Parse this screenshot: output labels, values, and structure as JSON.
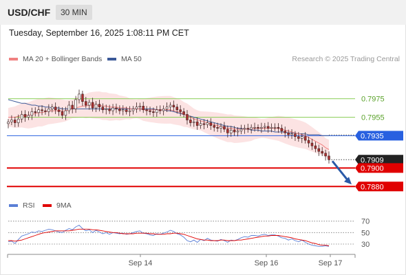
{
  "header": {
    "symbol": "USD/CHF",
    "timeframe": "30 MIN"
  },
  "datetime": "Tuesday, September 16, 2025 1:08:11 PM CET",
  "legend": {
    "ma20": "MA 20 + Bollinger Bands",
    "ma50": "MA 50",
    "research": "Research © 2025 Trading Central"
  },
  "rsi_legend": {
    "rsi": "RSI",
    "ma9": "9MA"
  },
  "colors": {
    "ma20": "#f08080",
    "ma50": "#3b5998",
    "rsi": "#5b7fd6",
    "ma9": "#e00000",
    "green": "#8ccf5a",
    "blue": "#2860e0",
    "red": "#e00000",
    "candle_up": "#ffffff",
    "candle_down": "#b03030"
  },
  "chart_data": [
    {
      "type": "candlestick",
      "title": "USD/CHF 30 MIN",
      "x_ticks": [
        "Sep 14",
        "Sep 16",
        "Sep 17"
      ],
      "ylim": [
        0.7872,
        0.8
      ],
      "overlays": [
        "MA 20 + Bollinger Bands",
        "MA 50"
      ],
      "levels": [
        {
          "value": 0.7975,
          "label": "0.7975",
          "color": "green"
        },
        {
          "value": 0.7955,
          "label": "0.7955",
          "color": "green"
        },
        {
          "value": 0.7935,
          "label": "0.7935",
          "color": "blue"
        },
        {
          "value": 0.7909,
          "label": "0.7909",
          "color": "black"
        },
        {
          "value": 0.79,
          "label": "0.7900",
          "color": "red"
        },
        {
          "value": 0.788,
          "label": "0.7880",
          "color": "red"
        }
      ],
      "close": [
        0.795,
        0.7952,
        0.7949,
        0.7953,
        0.7958,
        0.7955,
        0.7957,
        0.7961,
        0.796,
        0.7963,
        0.7962,
        0.7961,
        0.7964,
        0.7966,
        0.7963,
        0.7961,
        0.7957,
        0.7962,
        0.7968,
        0.7964,
        0.7974,
        0.798,
        0.7972,
        0.7968,
        0.7971,
        0.7965,
        0.7969,
        0.7966,
        0.7963,
        0.7964,
        0.7962,
        0.7965,
        0.7964,
        0.7962,
        0.7963,
        0.7961,
        0.7962,
        0.7964,
        0.7966,
        0.7967,
        0.7963,
        0.7962,
        0.7961,
        0.796,
        0.7963,
        0.7962,
        0.7964,
        0.7966,
        0.7968,
        0.7966,
        0.7963,
        0.7961,
        0.7958,
        0.7952,
        0.7949,
        0.795,
        0.7946,
        0.7948,
        0.7947,
        0.7949,
        0.7946,
        0.7944,
        0.7943,
        0.7945,
        0.7942,
        0.7938,
        0.7941,
        0.7939,
        0.794,
        0.7942,
        0.7943,
        0.7942,
        0.7944,
        0.7944,
        0.7943,
        0.7944,
        0.7945,
        0.7943,
        0.7944,
        0.7944,
        0.7943,
        0.794,
        0.7938,
        0.7936,
        0.7937,
        0.7934,
        0.7932,
        0.7934,
        0.793,
        0.7927,
        0.7924,
        0.7921,
        0.7918,
        0.7916,
        0.7913,
        0.7909
      ],
      "ma20": [
        0.7955,
        0.7955,
        0.7955,
        0.7956,
        0.7957,
        0.7957,
        0.7957,
        0.7958,
        0.7959,
        0.796,
        0.796,
        0.7961,
        0.7962,
        0.7962,
        0.7962,
        0.7962,
        0.7962,
        0.7962,
        0.7963,
        0.7964,
        0.7965,
        0.7966,
        0.7967,
        0.7967,
        0.7968,
        0.7968,
        0.7968,
        0.7968,
        0.7967,
        0.7967,
        0.7966,
        0.7966,
        0.7966,
        0.7965,
        0.7965,
        0.7965,
        0.7964,
        0.7964,
        0.7964,
        0.7964,
        0.7963,
        0.7963,
        0.7963,
        0.7963,
        0.7963,
        0.7963,
        0.7963,
        0.7963,
        0.7963,
        0.7962,
        0.7961,
        0.796,
        0.7958,
        0.7957,
        0.7955,
        0.7953,
        0.7952,
        0.7951,
        0.795,
        0.7949,
        0.7948,
        0.7947,
        0.7946,
        0.7945,
        0.7944,
        0.7943,
        0.7943,
        0.7942,
        0.7942,
        0.7942,
        0.7942,
        0.7942,
        0.7942,
        0.7943,
        0.7943,
        0.7943,
        0.7943,
        0.7943,
        0.7943,
        0.7943,
        0.7943,
        0.7942,
        0.7941,
        0.794,
        0.7939,
        0.7938,
        0.7937,
        0.7936,
        0.7935,
        0.7933,
        0.7931,
        0.7929,
        0.7927,
        0.7925,
        0.7922,
        0.792
      ],
      "ma50": [
        0.7974,
        0.7973,
        0.7972,
        0.7971,
        0.797,
        0.797,
        0.7969,
        0.7968,
        0.7968,
        0.7967,
        0.7967,
        0.7966,
        0.7966,
        0.7965,
        0.7965,
        0.7965,
        0.7964,
        0.7964,
        0.7964,
        0.7964,
        0.7964,
        0.7964,
        0.7964,
        0.7964,
        0.7964,
        0.7964,
        0.7964,
        0.7964,
        0.7964,
        0.7964,
        0.7964,
        0.7964,
        0.7964,
        0.7964,
        0.7964,
        0.7964,
        0.7964,
        0.7964,
        0.7964,
        0.7964,
        0.7964,
        0.7964,
        0.7964,
        0.7964,
        0.7963,
        0.7963,
        0.7963,
        0.7962,
        0.7962,
        0.7961,
        0.796,
        0.7959,
        0.7958,
        0.7957,
        0.7956,
        0.7955,
        0.7954,
        0.7953,
        0.7952,
        0.7951,
        0.795,
        0.7949,
        0.7948,
        0.7947,
        0.7946,
        0.7945,
        0.7945,
        0.7944,
        0.7943,
        0.7943,
        0.7942,
        0.7942,
        0.7941,
        0.7941,
        0.7941,
        0.794,
        0.794,
        0.794,
        0.794,
        0.7939,
        0.7939,
        0.7939,
        0.7939,
        0.7938,
        0.7938,
        0.7938,
        0.7937,
        0.7937,
        0.7937,
        0.7936,
        0.7936,
        0.7936,
        0.7936,
        0.7935,
        0.7935,
        0.7935
      ]
    },
    {
      "type": "line",
      "title": "RSI",
      "yticks": [
        70,
        50,
        30
      ],
      "ylim": [
        18,
        78
      ],
      "series": [
        {
          "name": "RSI",
          "values": [
            34,
            35,
            31,
            38,
            44,
            46,
            48,
            51,
            50,
            53,
            52,
            54,
            56,
            55,
            53,
            51,
            50,
            54,
            57,
            55,
            60,
            63,
            57,
            53,
            55,
            50,
            54,
            51,
            48,
            50,
            47,
            50,
            49,
            48,
            49,
            47,
            48,
            50,
            52,
            53,
            49,
            48,
            46,
            45,
            48,
            47,
            49,
            51,
            54,
            52,
            48,
            46,
            42,
            36,
            34,
            37,
            33,
            38,
            36,
            40,
            37,
            36,
            35,
            38,
            36,
            33,
            37,
            36,
            38,
            41,
            43,
            42,
            45,
            45,
            44,
            46,
            47,
            45,
            46,
            46,
            44,
            41,
            40,
            37,
            39,
            36,
            34,
            37,
            33,
            30,
            28,
            27,
            26,
            26,
            27,
            26
          ]
        },
        {
          "name": "9MA",
          "values": [
            36,
            36,
            35,
            36,
            37,
            39,
            41,
            43,
            45,
            47,
            49,
            50,
            51,
            52,
            53,
            53,
            53,
            53,
            53,
            54,
            55,
            56,
            56,
            56,
            56,
            55,
            55,
            54,
            53,
            52,
            51,
            50,
            50,
            49,
            48,
            48,
            48,
            48,
            49,
            49,
            49,
            49,
            48,
            48,
            47,
            47,
            47,
            48,
            48,
            49,
            49,
            48,
            47,
            45,
            43,
            41,
            39,
            38,
            37,
            37,
            36,
            36,
            36,
            37,
            37,
            36,
            36,
            36,
            37,
            37,
            38,
            39,
            40,
            41,
            42,
            43,
            44,
            44,
            45,
            45,
            45,
            44,
            43,
            42,
            41,
            39,
            38,
            37,
            36,
            34,
            32,
            31,
            29,
            28,
            28,
            27
          ]
        }
      ]
    }
  ]
}
